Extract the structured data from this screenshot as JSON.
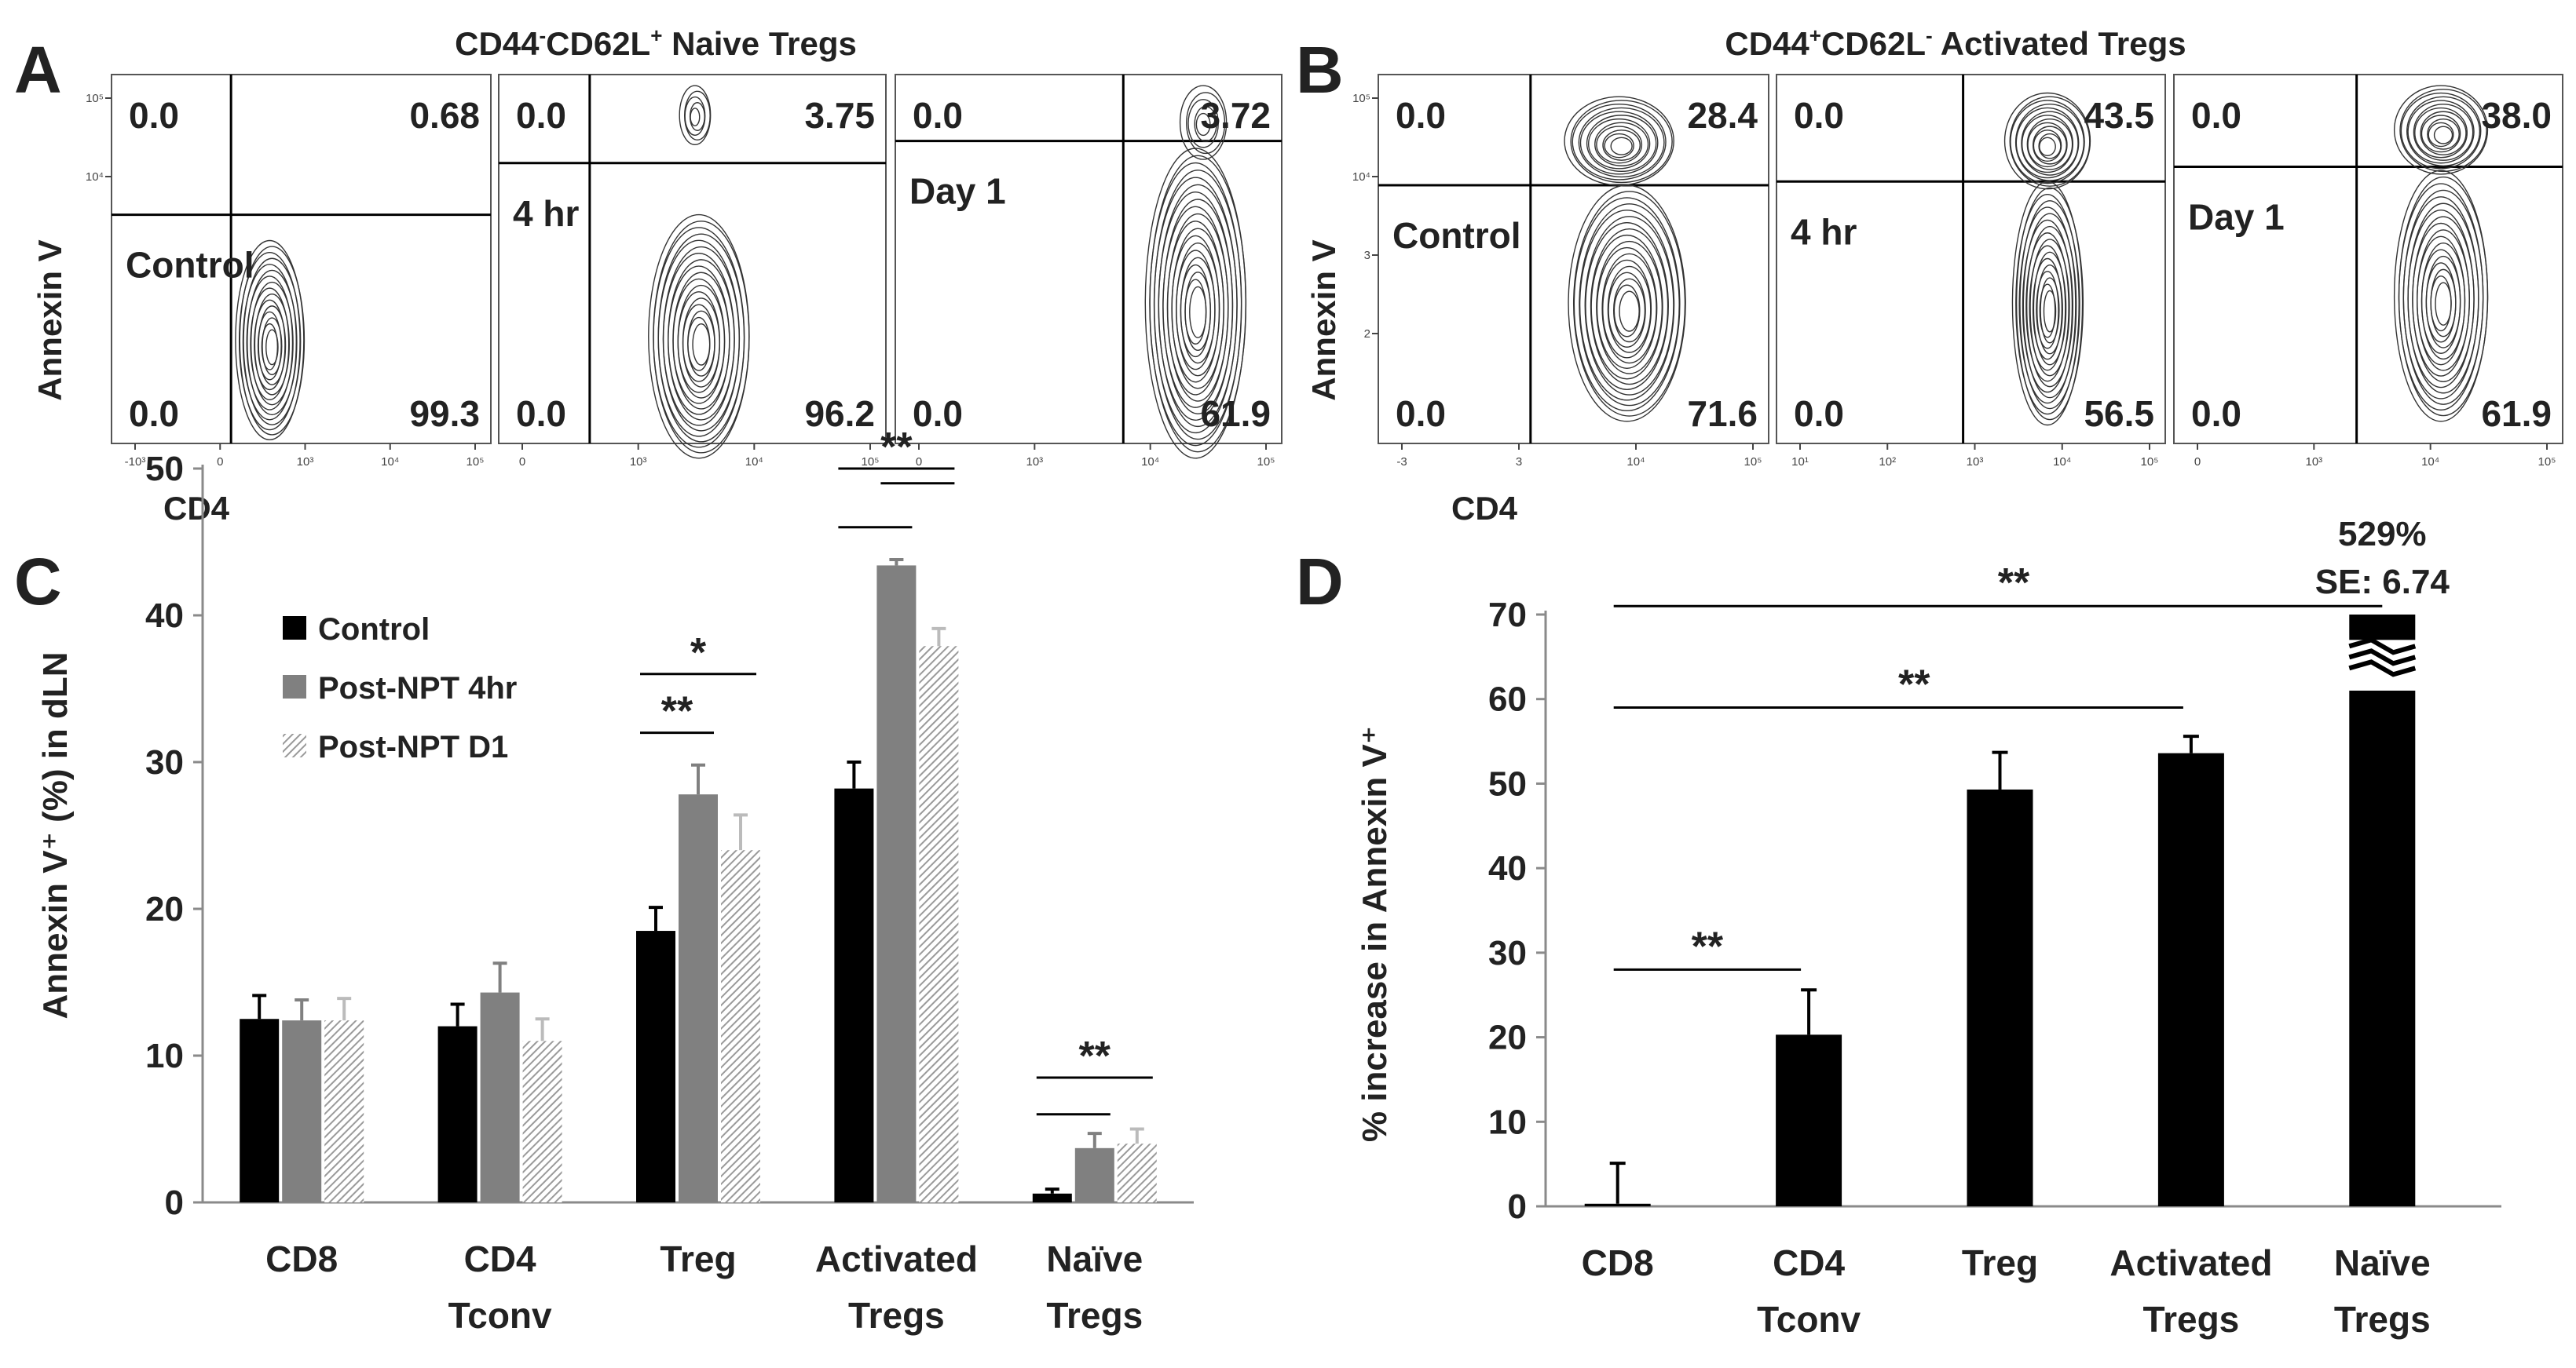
{
  "panel_letters": {
    "a": "A",
    "b": "B",
    "c": "C",
    "d": "D"
  },
  "panel_a": {
    "title_main": "CD44",
    "title_sup1": "-",
    "title_mid": "CD62L",
    "title_sup2": "+",
    "title_rest": " Naive Tregs",
    "ylabel": "Annexin V",
    "xlabel": "CD4",
    "plots": [
      {
        "label": "Control",
        "ul": "0.0",
        "ur": "0.68",
        "ll": "0.0",
        "lr": "99.3",
        "yticks": [
          "10⁵",
          "10⁴"
        ],
        "xticks": [
          "-10³",
          "0",
          "10³",
          "10⁴",
          "10⁵"
        ]
      },
      {
        "label": "4 hr",
        "ul": "0.0",
        "ur": "3.75",
        "ll": "0.0",
        "lr": "96.2",
        "yticks": [],
        "xticks": [
          "0",
          "10³",
          "10⁴",
          "10⁵"
        ]
      },
      {
        "label": "Day 1",
        "ul": "0.0",
        "ur": "3.72",
        "ll": "0.0",
        "lr": "61.9",
        "yticks": [],
        "xticks": [
          "0",
          "10³",
          "10⁴",
          "10⁵"
        ]
      }
    ]
  },
  "panel_b": {
    "title_main": "CD44",
    "title_sup1": "+",
    "title_mid": "CD62L",
    "title_sup2": "-",
    "title_rest": " Activated Tregs",
    "ylabel": "Annexin V",
    "xlabel": "CD4",
    "plots": [
      {
        "label": "Control",
        "ul": "0.0",
        "ur": "28.4",
        "ll": "0.0",
        "lr": "71.6",
        "yticks": [
          "10⁵",
          "10⁴",
          "3",
          "2"
        ],
        "xticks": [
          "-3",
          "3",
          "10⁴",
          "10⁵"
        ]
      },
      {
        "label": "4 hr",
        "ul": "0.0",
        "ur": "43.5",
        "ll": "0.0",
        "lr": "56.5",
        "yticks": [],
        "xticks": [
          "10¹",
          "10²",
          "10³",
          "10⁴",
          "10⁵"
        ]
      },
      {
        "label": "Day 1",
        "ul": "0.0",
        "ur": "38.0",
        "ll": "0.0",
        "lr": "61.9",
        "yticks": [],
        "xticks": [
          "0",
          "10³",
          "10⁴",
          "10⁵"
        ]
      }
    ]
  },
  "chart_data": [
    {
      "id": "C",
      "type": "bar",
      "title": "",
      "ylabel": "Annexin V⁺ (%) in dLN",
      "xlabel": "",
      "ylim": [
        0,
        50
      ],
      "yticks": [
        0,
        10,
        20,
        30,
        40,
        50
      ],
      "categories": [
        [
          "CD8"
        ],
        [
          "CD4",
          "Tconv"
        ],
        [
          "Treg"
        ],
        [
          "Activated",
          "Tregs"
        ],
        [
          "Naïve",
          "Tregs"
        ]
      ],
      "series": [
        {
          "name": "Control",
          "values": [
            12.5,
            12.0,
            18.5,
            28.2,
            0.6
          ],
          "errors": [
            1.6,
            1.5,
            1.6,
            1.8,
            0.3
          ],
          "color": "#000000"
        },
        {
          "name": "Post-NPT 4hr",
          "values": [
            12.4,
            14.3,
            27.8,
            43.4,
            3.7
          ],
          "errors": [
            1.4,
            2.0,
            2.0,
            0.4,
            1.0
          ],
          "color": "#808080"
        },
        {
          "name": "Post-NPT D1",
          "values": [
            12.4,
            11.0,
            24.0,
            37.9,
            4.0
          ],
          "errors": [
            1.5,
            1.5,
            2.4,
            1.2,
            1.0
          ],
          "color": "#c8c8c8"
        }
      ],
      "significance": [
        {
          "label": "*",
          "category": 2,
          "from_series": 0,
          "to_series": 2,
          "level": 36
        },
        {
          "label": "**",
          "category": 2,
          "from_series": 0,
          "to_series": 1,
          "level": 32
        },
        {
          "label": "**",
          "category": 3,
          "from_series": 0,
          "to_series": 2,
          "level": 50
        },
        {
          "label": "",
          "category": 3,
          "from_series": 0,
          "to_series": 1,
          "level": 46
        },
        {
          "label": "",
          "category": 3,
          "from_series": 1,
          "to_series": 2,
          "level": 49
        },
        {
          "label": "**",
          "category": 4,
          "from_series": 0,
          "to_series": 2,
          "level": 8.5
        },
        {
          "label": "",
          "category": 4,
          "from_series": 0,
          "to_series": 1,
          "level": 6
        }
      ],
      "legend": "top-left"
    },
    {
      "id": "D",
      "type": "bar",
      "title": "",
      "ylabel": "% increase in Annexin V⁺",
      "xlabel": "",
      "ylim": [
        0,
        70
      ],
      "yticks": [
        0,
        10,
        20,
        30,
        40,
        50,
        60,
        70
      ],
      "categories": [
        [
          "CD8"
        ],
        [
          "CD4",
          "Tconv"
        ],
        [
          "Treg"
        ],
        [
          "Activated",
          "Tregs"
        ],
        [
          "Naïve",
          "Tregs"
        ]
      ],
      "values": [
        0.3,
        20.3,
        49.3,
        53.6,
        529
      ],
      "errors": [
        4.8,
        5.3,
        4.4,
        2.0,
        6.74
      ],
      "axis_break": {
        "category": 4,
        "display_top": 70,
        "break_from": 61,
        "break_to": 67
      },
      "annotation": {
        "line1": "529%",
        "line2": "SE: 6.74"
      },
      "color": "#000000",
      "significance": [
        {
          "label": "**",
          "from": 0,
          "to": 1,
          "level": 28
        },
        {
          "label": "**",
          "from": 0,
          "to": 3,
          "level": 59
        },
        {
          "label": "**",
          "from": 0,
          "to": 4,
          "level": 71
        }
      ]
    }
  ]
}
